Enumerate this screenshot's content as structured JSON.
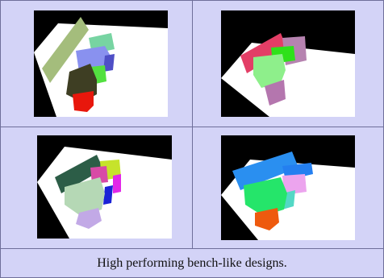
{
  "caption": "High performing bench-like designs.",
  "panels": [
    {
      "position": "top-left",
      "shapes": [
        "olive-backrest",
        "mint-block",
        "periwinkle-seat",
        "blue-block",
        "green-block",
        "dark-olive-block",
        "red-leg"
      ]
    },
    {
      "position": "top-right",
      "shapes": [
        "crimson-backrest",
        "mauve-block",
        "lime-block",
        "light-green-seat",
        "mauve-leg"
      ]
    },
    {
      "position": "bottom-left",
      "shapes": [
        "dark-green-backrest",
        "yellow-green-block",
        "magenta-block",
        "pale-green-seat",
        "blue-block",
        "lavender-leg"
      ]
    },
    {
      "position": "bottom-right",
      "shapes": [
        "azure-backrest",
        "blue-block",
        "pink-block",
        "green-seat",
        "teal-block",
        "orange-leg"
      ]
    }
  ],
  "colors": {
    "frame_background": "#d3d3f7",
    "border": "#6f6f9a",
    "render_background": "#000000",
    "floor": "#ffffff"
  }
}
